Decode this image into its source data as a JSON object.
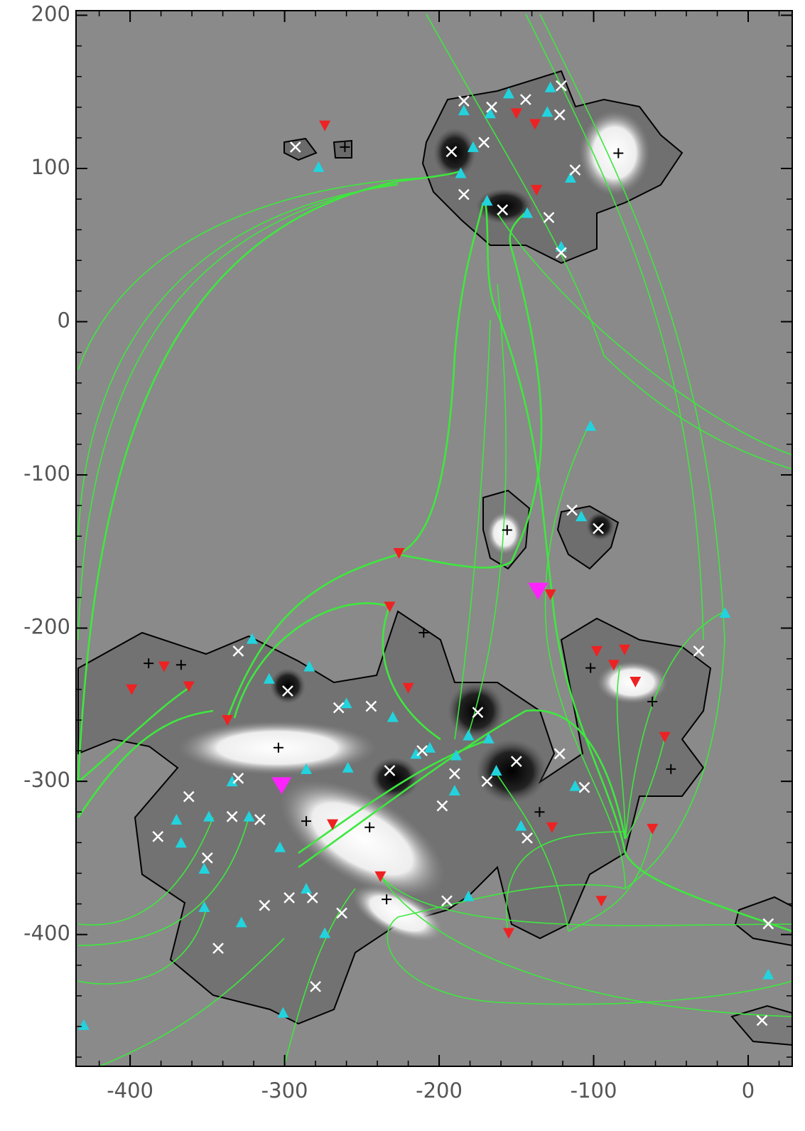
{
  "chart_data": {
    "type": "scatter",
    "xlim": [
      -435,
      28.5
    ],
    "ylim": [
      -486,
      203
    ],
    "xticks": [
      -400,
      -300,
      -200,
      -100,
      0
    ],
    "yticks": [
      -400,
      -300,
      -200,
      -100,
      0,
      100,
      200
    ],
    "series": [
      {
        "marker": "triangle-up",
        "color": "#22d3dd",
        "x": [
          -278,
          -184,
          -155,
          -128,
          -130,
          -167,
          -178,
          -186,
          -169,
          -143,
          -115,
          -121,
          -102,
          -108,
          -15,
          -321,
          -284,
          -310,
          -260,
          -230,
          -181,
          -168,
          -206,
          -215,
          -189,
          -259,
          -286,
          -163,
          -334,
          -190,
          -112,
          -370,
          -349,
          -323,
          -367,
          -303,
          -147,
          -352,
          -286,
          -181,
          -352,
          -328,
          -274,
          -301,
          13,
          -430
        ],
        "y": [
          101,
          138,
          149,
          153,
          137,
          136,
          114,
          97,
          79,
          71,
          94,
          49,
          -68,
          -127,
          -190,
          -207,
          -225,
          -233,
          -249,
          -258,
          -270,
          -272,
          -278,
          -282,
          -283,
          -291,
          -292,
          -293,
          -300,
          -306,
          -303,
          -325,
          -323,
          -323,
          -340,
          -343,
          -329,
          -357,
          -370,
          -375,
          -382,
          -392,
          -399,
          -451,
          -426,
          -459
        ]
      },
      {
        "marker": "cross",
        "color": "#ffffff",
        "x": [
          -293,
          -192,
          -184,
          -166,
          -144,
          -121,
          -122,
          -171,
          -184,
          -159,
          -129,
          -112,
          -121,
          -114,
          -97,
          -330,
          -298,
          -265,
          -244,
          -175,
          -150,
          -169,
          -232,
          -211,
          -190,
          -198,
          -330,
          -362,
          -382,
          -334,
          -316,
          -350,
          -297,
          -313,
          -282,
          -263,
          -343,
          -280,
          -195,
          -143,
          -122,
          -106,
          -32,
          13,
          9
        ],
        "y": [
          114,
          111,
          144,
          140,
          145,
          154,
          135,
          117,
          83,
          73,
          68,
          99,
          45,
          -123,
          -135,
          -215,
          -241,
          -252,
          -251,
          -255,
          -287,
          -300,
          -293,
          -280,
          -295,
          -316,
          -298,
          -310,
          -336,
          -323,
          -325,
          -350,
          -376,
          -381,
          -376,
          -386,
          -409,
          -434,
          -378,
          -337,
          -282,
          -304,
          -215,
          -393,
          -456
        ]
      },
      {
        "marker": "triangle-down",
        "color": "#ee2222",
        "x": [
          -274,
          -150,
          -138,
          -137,
          -128,
          -378,
          -362,
          -399,
          -337,
          -220,
          -226,
          -232,
          -98,
          -87,
          -80,
          -73,
          -54,
          -269,
          -238,
          -127,
          -62,
          -155,
          -95
        ],
        "y": [
          128,
          136,
          129,
          86,
          -178,
          -225,
          -238,
          -240,
          -260,
          -239,
          -151,
          -186,
          -215,
          -224,
          -214,
          -235,
          -271,
          -328,
          -362,
          -330,
          -331,
          -399,
          -378
        ]
      },
      {
        "marker": "plus",
        "color": "#000000",
        "x": [
          -261,
          -84,
          -156,
          -102,
          -367,
          -388,
          -304,
          -245,
          -286,
          -50,
          -62,
          -234,
          -210,
          -135
        ],
        "y": [
          114,
          110,
          -136,
          -226,
          -224,
          -223,
          -278,
          -330,
          -326,
          -292,
          -248,
          -377,
          -203,
          -320
        ]
      },
      {
        "marker": "triangle-down-big",
        "color": "#ff22ff",
        "x": [
          -302,
          -136
        ],
        "y": [
          -302,
          -175
        ]
      }
    ]
  }
}
